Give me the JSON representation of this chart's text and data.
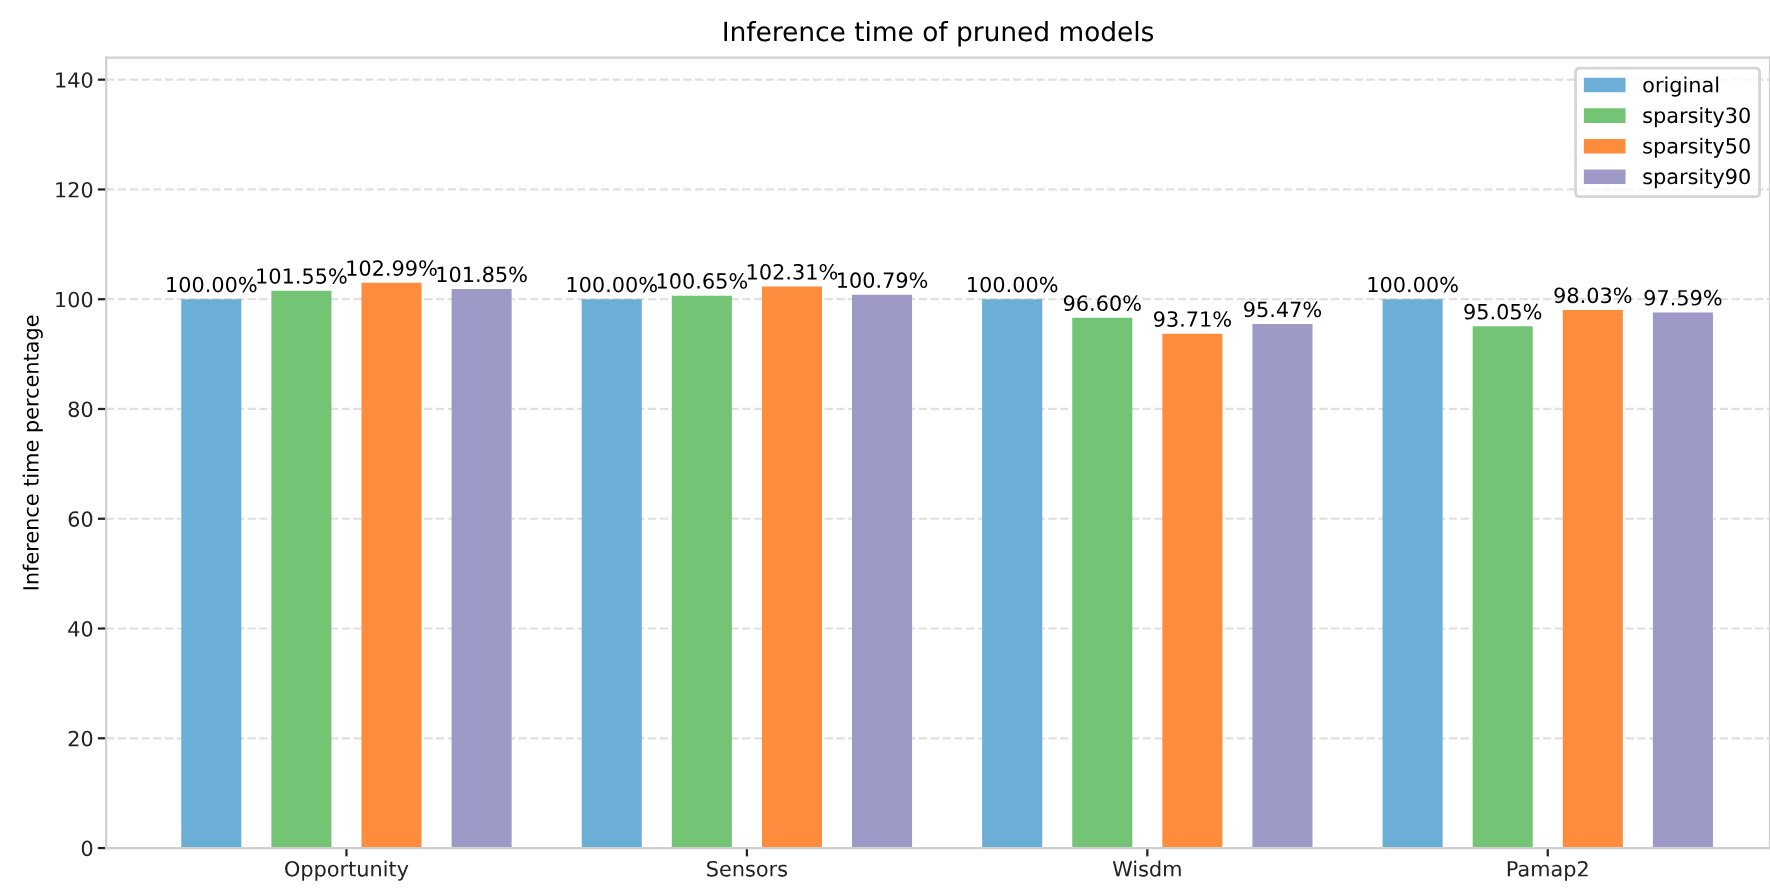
{
  "chart_data": {
    "type": "bar",
    "title": "Inference time of pruned models",
    "ylabel": "Inference time percentage",
    "categories": [
      "Opportunity",
      "Sensors",
      "Wisdm",
      "Pamap2"
    ],
    "series": [
      {
        "name": "original",
        "color": "#6baed6",
        "values": [
          100.0,
          100.0,
          100.0,
          100.0
        ],
        "value_labels": [
          "100.00%",
          "100.00%",
          "100.00%",
          "100.00%"
        ]
      },
      {
        "name": "sparsity30",
        "color": "#74c476",
        "values": [
          101.55,
          100.65,
          96.6,
          95.05
        ],
        "value_labels": [
          "101.55%",
          "100.65%",
          "96.60%",
          "95.05%"
        ]
      },
      {
        "name": "sparsity50",
        "color": "#fd8d3c",
        "values": [
          102.99,
          102.31,
          93.71,
          98.03
        ],
        "value_labels": [
          "102.99%",
          "102.31%",
          "93.71%",
          "98.03%"
        ]
      },
      {
        "name": "sparsity90",
        "color": "#9e9ac8",
        "values": [
          101.85,
          100.79,
          95.47,
          97.59
        ],
        "value_labels": [
          "101.85%",
          "100.79%",
          "95.47%",
          "97.59%"
        ]
      }
    ],
    "ylim": [
      0,
      144
    ],
    "yticks": [
      0,
      20,
      40,
      60,
      80,
      100,
      120,
      140
    ],
    "grid": "y",
    "legend": "top right"
  }
}
